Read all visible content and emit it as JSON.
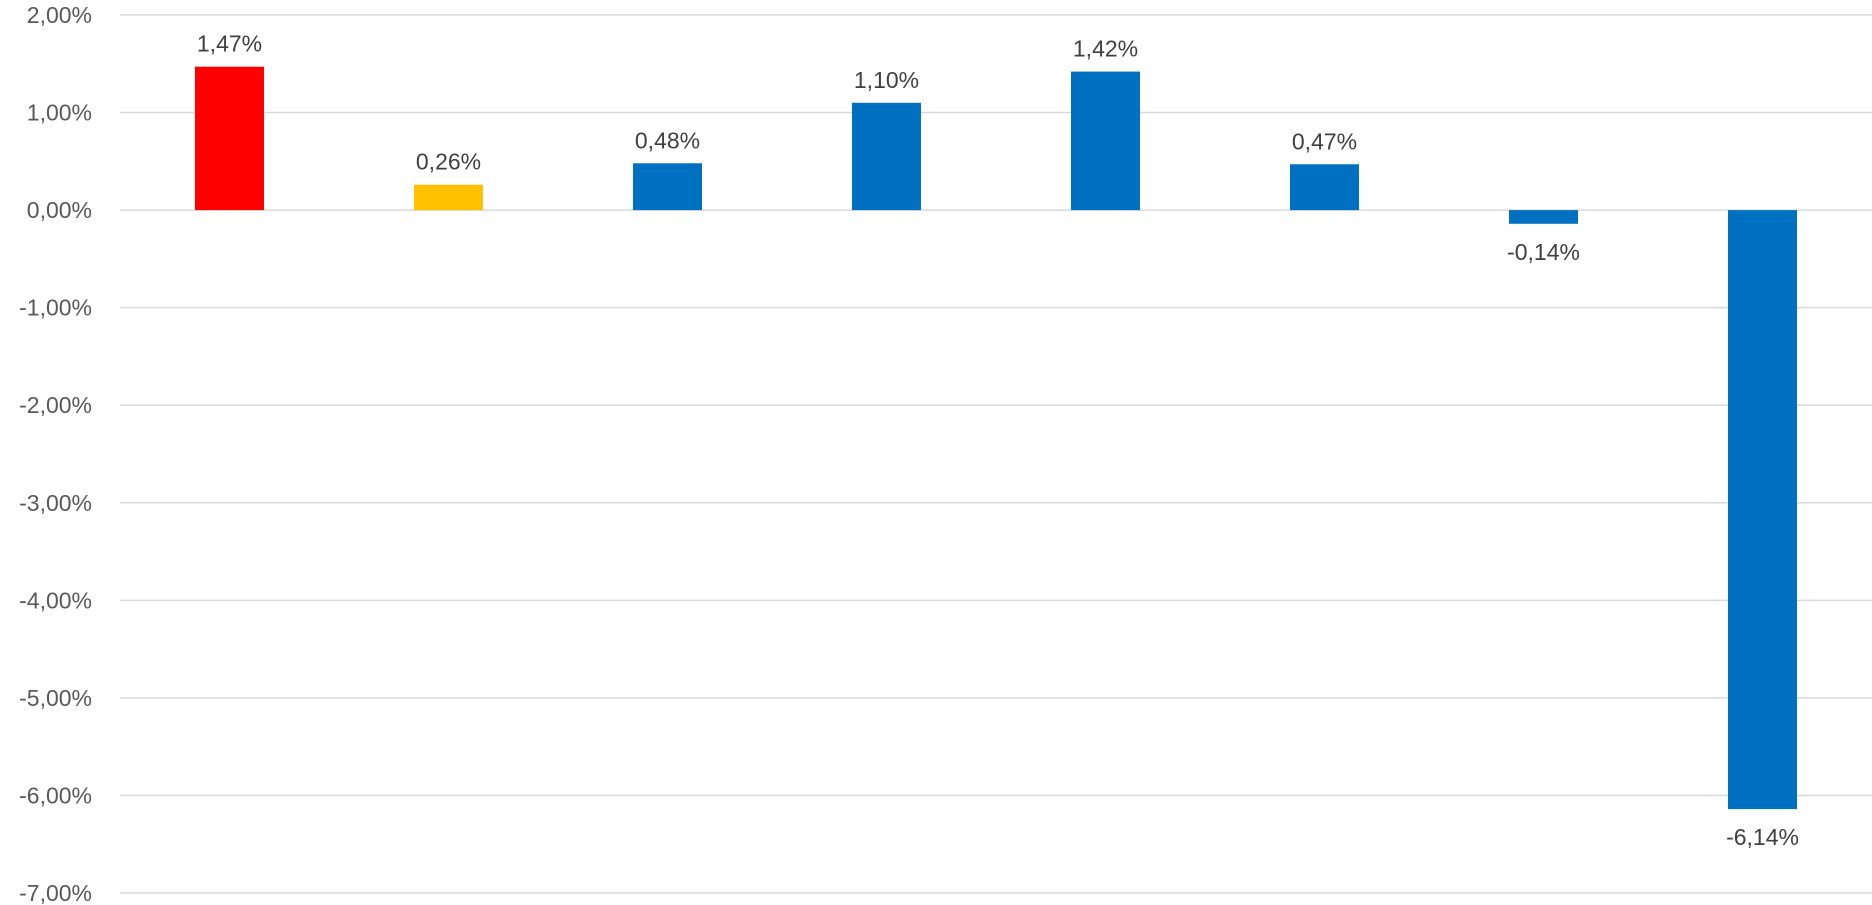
{
  "chart_data": {
    "type": "bar",
    "categories": [
      "",
      "",
      "",
      "",
      "",
      "",
      "",
      ""
    ],
    "values": [
      1.47,
      0.26,
      0.48,
      1.1,
      1.42,
      0.47,
      -0.14,
      -6.14
    ],
    "data_labels": [
      "1,47%",
      "0,26%",
      "0,48%",
      "1,10%",
      "1,42%",
      "0,47%",
      "-0,14%",
      "-6,14%"
    ],
    "colors": [
      "#ff0000",
      "#ffc000",
      "#0070c0",
      "#0070c0",
      "#0070c0",
      "#0070c0",
      "#0070c0",
      "#0070c0"
    ],
    "ylim": [
      -7,
      2
    ],
    "y_ticks": [
      2,
      1,
      0,
      -1,
      -2,
      -3,
      -4,
      -5,
      -6,
      -7
    ],
    "y_tick_labels": [
      "2,00%",
      "1,00%",
      "0,00%",
      "-1,00%",
      "-2,00%",
      "-3,00%",
      "-4,00%",
      "-5,00%",
      "-6,00%",
      "-7,00%"
    ],
    "grid": true,
    "legend": "none",
    "title": "",
    "xlabel": "",
    "ylabel": ""
  }
}
